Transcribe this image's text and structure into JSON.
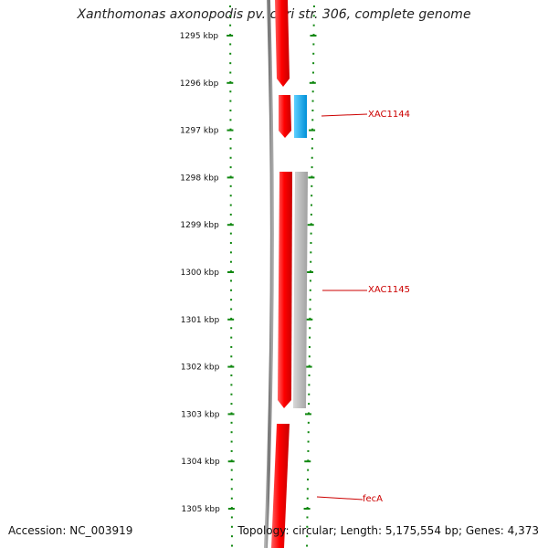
{
  "title": "Xanthomonas axonopodis pv. citri str. 306, complete genome",
  "scale": {
    "unit": "kbp",
    "ticks": [
      1295,
      1296,
      1297,
      1298,
      1299,
      1300,
      1301,
      1302,
      1303,
      1304,
      1305
    ]
  },
  "genes": [
    {
      "label": "XAC1144"
    },
    {
      "label": "XAC1145"
    },
    {
      "label": "fecA"
    }
  ],
  "footer": {
    "accession": "Accession: NC_003919",
    "summary": "Topology: circular; Length: 5,175,554 bp; Genes: 4,373"
  },
  "colors": {
    "forward_gene": "#ff0000",
    "cds_blue": "#00aaee",
    "cds_gray": "#b0b0b0",
    "backbone": "#808080",
    "scale": "#118811",
    "label": "#cc0000"
  }
}
